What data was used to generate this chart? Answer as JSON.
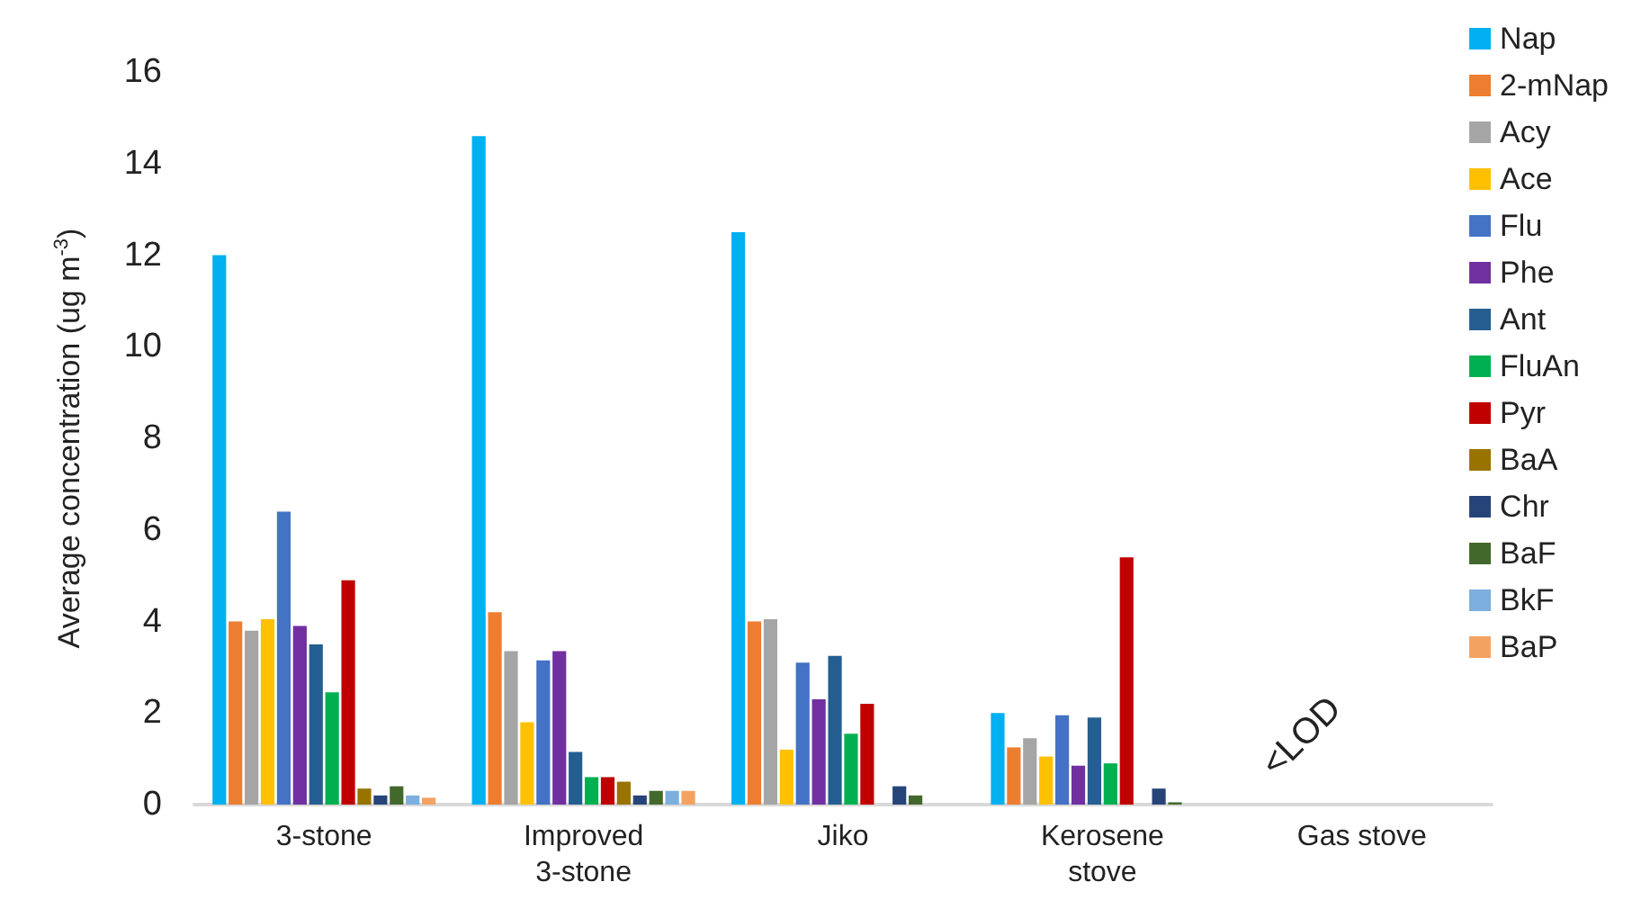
{
  "chart_data": {
    "type": "bar",
    "ylabel": "Average concentration (ug m$^{-3}$)",
    "categories": [
      "3-stone",
      "Improved\n3-stone",
      "Jiko",
      "Kerosene\nstove",
      "Gas stove"
    ],
    "ylim": [
      0,
      16
    ],
    "yticks": [
      0,
      2,
      4,
      6,
      8,
      10,
      12,
      14,
      16
    ],
    "grid": false,
    "legend": "right",
    "annotations": [
      "<LOD"
    ],
    "series": [
      {
        "name": "Nap",
        "color": "#00b0f0",
        "values": [
          12.0,
          14.6,
          12.5,
          2.0,
          null
        ]
      },
      {
        "name": "2-mNap",
        "color": "#ed7d31",
        "values": [
          4.0,
          4.2,
          4.0,
          1.25,
          null
        ]
      },
      {
        "name": "Acy",
        "color": "#a5a5a5",
        "values": [
          3.8,
          3.35,
          4.05,
          1.45,
          null
        ]
      },
      {
        "name": "Ace",
        "color": "#ffc000",
        "values": [
          4.05,
          1.8,
          1.2,
          1.05,
          null
        ]
      },
      {
        "name": "Flu",
        "color": "#4472c4",
        "values": [
          6.4,
          3.15,
          3.1,
          1.95,
          null
        ]
      },
      {
        "name": "Phe",
        "color": "#7030a0",
        "values": [
          3.9,
          3.35,
          2.3,
          0.85,
          null
        ]
      },
      {
        "name": "Ant",
        "color": "#255e91",
        "values": [
          3.5,
          1.15,
          3.25,
          1.9,
          null
        ]
      },
      {
        "name": "FluAn",
        "color": "#00b050",
        "values": [
          2.45,
          0.6,
          1.55,
          0.9,
          null
        ]
      },
      {
        "name": "Pyr",
        "color": "#c00000",
        "values": [
          4.9,
          0.6,
          2.2,
          5.4,
          null
        ]
      },
      {
        "name": "BaA",
        "color": "#997300",
        "values": [
          0.35,
          0.5,
          null,
          null,
          null
        ]
      },
      {
        "name": "Chr",
        "color": "#264478",
        "values": [
          0.2,
          0.2,
          0.4,
          0.35,
          null
        ]
      },
      {
        "name": "BaF",
        "color": "#43682b",
        "values": [
          0.4,
          0.3,
          0.2,
          0.05,
          null
        ]
      },
      {
        "name": "BkF",
        "color": "#7cafdd",
        "values": [
          0.2,
          0.3,
          null,
          null,
          null
        ]
      },
      {
        "name": "BaP",
        "color": "#f4a261",
        "values": [
          0.15,
          0.3,
          null,
          null,
          null
        ]
      }
    ]
  }
}
